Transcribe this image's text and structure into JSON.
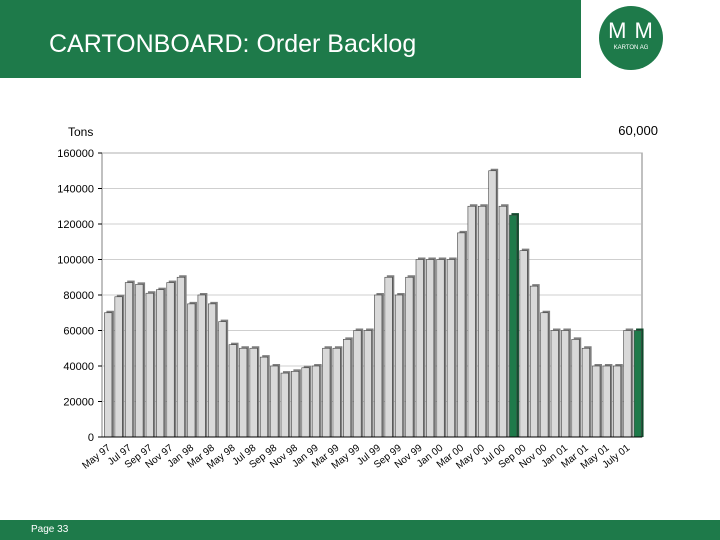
{
  "slide": {
    "title": "CARTONBOARD: Order Backlog",
    "page_label": "Page 33",
    "logo": {
      "mark": "M M",
      "text": "KARTON AG"
    },
    "colors": {
      "brand_green": "#1e7a4a",
      "bar_light": "#d9d9d9",
      "bar_highlight": "#1e7a4a"
    }
  },
  "chart_data": {
    "type": "bar",
    "title": "",
    "ylabel": "Tons",
    "xlabel": "",
    "annotation": "60,000",
    "ylim": [
      0,
      160000
    ],
    "y_ticks": [
      0,
      20000,
      40000,
      60000,
      80000,
      100000,
      120000,
      140000,
      160000
    ],
    "grid": true,
    "categories": [
      "May 97",
      "Jun 97",
      "Jul 97",
      "Aug 97",
      "Sep 97",
      "Oct 97",
      "Nov 97",
      "Dec 97",
      "Jan 98",
      "Feb 98",
      "Mar 98",
      "Apr 98",
      "May 98",
      "Jun 98",
      "Jul 98",
      "Aug 98",
      "Sep 98",
      "Oct 98",
      "Nov 98",
      "Dec 98",
      "Jan 99",
      "Feb 99",
      "Mar 99",
      "Apr 99",
      "May 99",
      "Jun 99",
      "Jul 99",
      "Aug 99",
      "Sep 99",
      "Oct 99",
      "Nov 99",
      "Dec 99",
      "Jan 00",
      "Feb 00",
      "Mar 00",
      "Apr 00",
      "May 00",
      "Jun 00",
      "Jul 00",
      "Aug 00",
      "Sep 00",
      "Oct 00",
      "Nov 00",
      "Dec 00",
      "Jan 01",
      "Feb 01",
      "Mar 01",
      "Apr 01",
      "May 01",
      "Jun 01",
      "July 01",
      "Aug 01"
    ],
    "x_tick_labels": [
      "May 97",
      "Jul 97",
      "Sep 97",
      "Nov 97",
      "Jan 98",
      "Mar 98",
      "May 98",
      "Jul 98",
      "Sep 98",
      "Nov 98",
      "Jan 99",
      "Mar 99",
      "May 99",
      "Jul 99",
      "Sep 99",
      "Nov 99",
      "Jan 00",
      "Mar 00",
      "May 00",
      "Jul 00",
      "Sep 00",
      "Nov 00",
      "Jan 01",
      "Mar 01",
      "May 01",
      "July 01"
    ],
    "values": [
      70000,
      79000,
      87000,
      86000,
      81000,
      83000,
      87000,
      90000,
      75000,
      80000,
      75000,
      65000,
      52000,
      50000,
      50000,
      45000,
      40000,
      36000,
      37000,
      39000,
      40000,
      50000,
      50000,
      55000,
      60000,
      60000,
      80000,
      90000,
      80000,
      90000,
      100000,
      100000,
      100000,
      100000,
      115000,
      130000,
      130000,
      150000,
      130000,
      125000,
      105000,
      85000,
      70000,
      60000,
      60000,
      55000,
      50000,
      40000,
      40000,
      40000,
      60000,
      60000
    ],
    "highlight_indices": [
      39,
      51
    ]
  }
}
